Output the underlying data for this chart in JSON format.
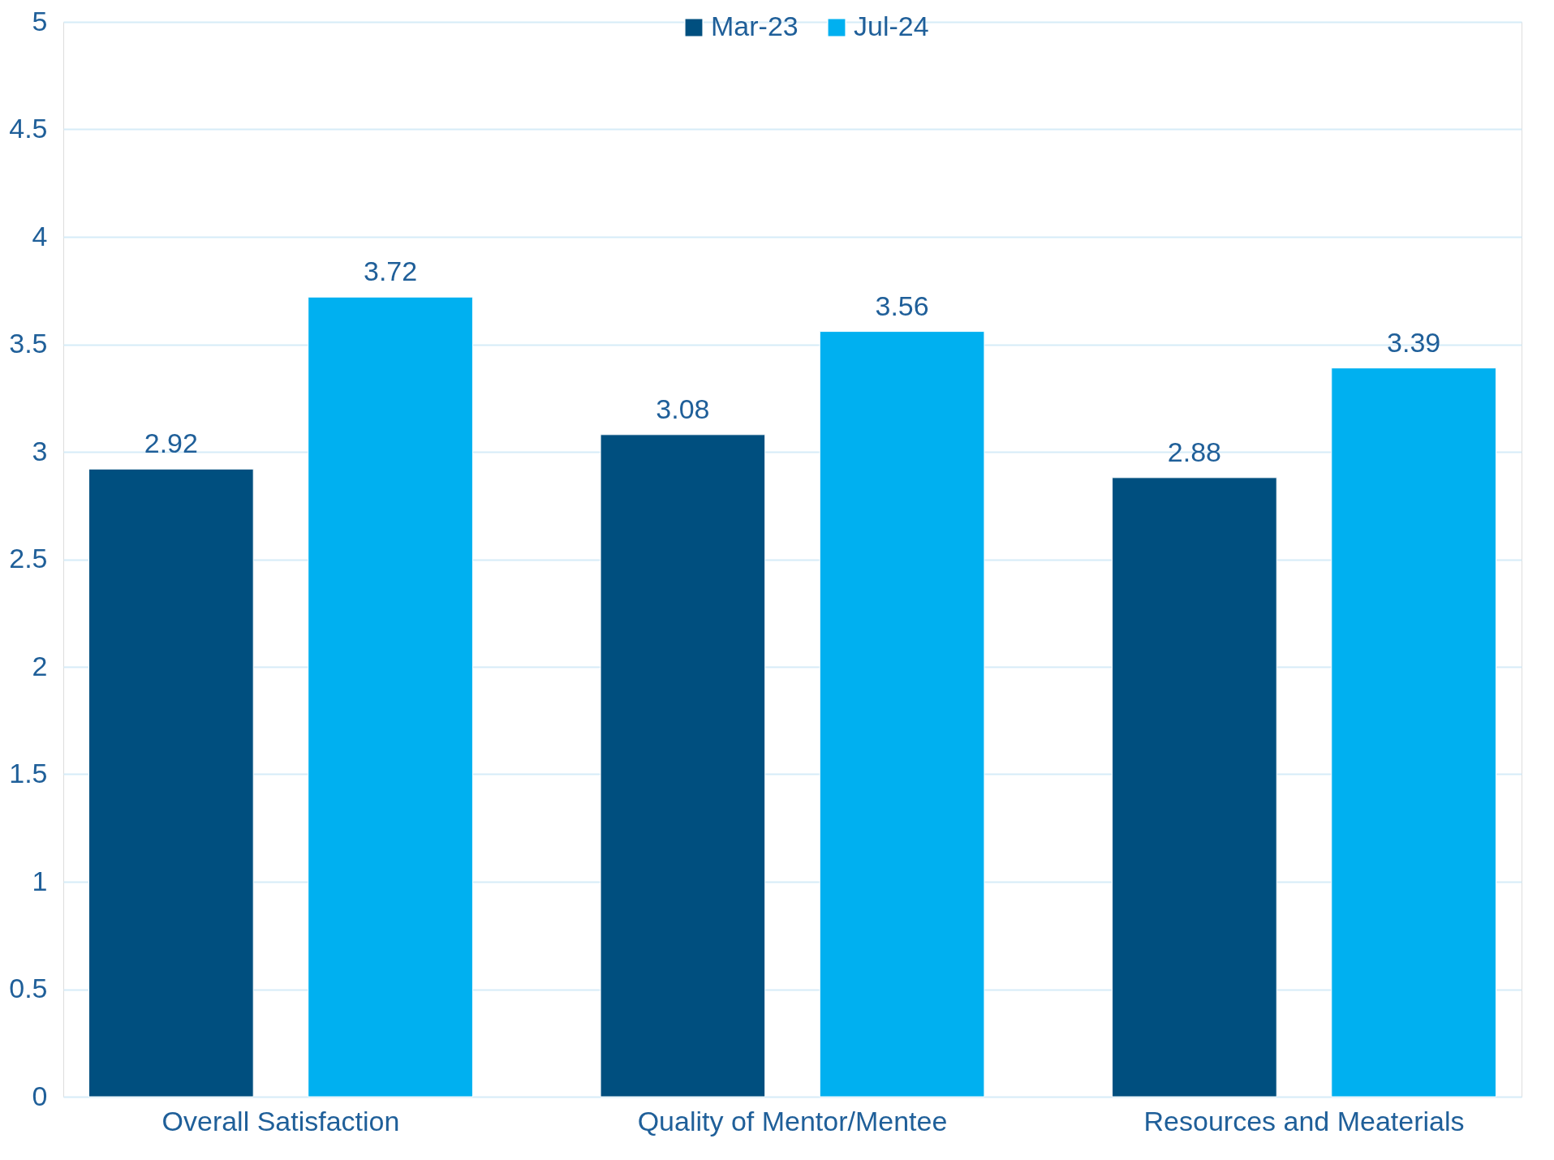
{
  "chart_data": {
    "type": "bar",
    "categories": [
      "Overall Satisfaction",
      "Quality of Mentor/Mentee",
      "Resources and Meaterials"
    ],
    "series": [
      {
        "name": "Mar-23",
        "color": "#004f7f",
        "values": [
          2.92,
          3.08,
          2.88
        ]
      },
      {
        "name": "Jul-24",
        "color": "#00b0f0",
        "values": [
          3.72,
          3.56,
          3.39
        ]
      }
    ],
    "ylim": [
      0,
      5
    ],
    "yticks": [
      0,
      0.5,
      1,
      1.5,
      2,
      2.5,
      3,
      3.5,
      4,
      4.5,
      5
    ],
    "grid": "y",
    "legend": "top",
    "data_labels": true
  }
}
